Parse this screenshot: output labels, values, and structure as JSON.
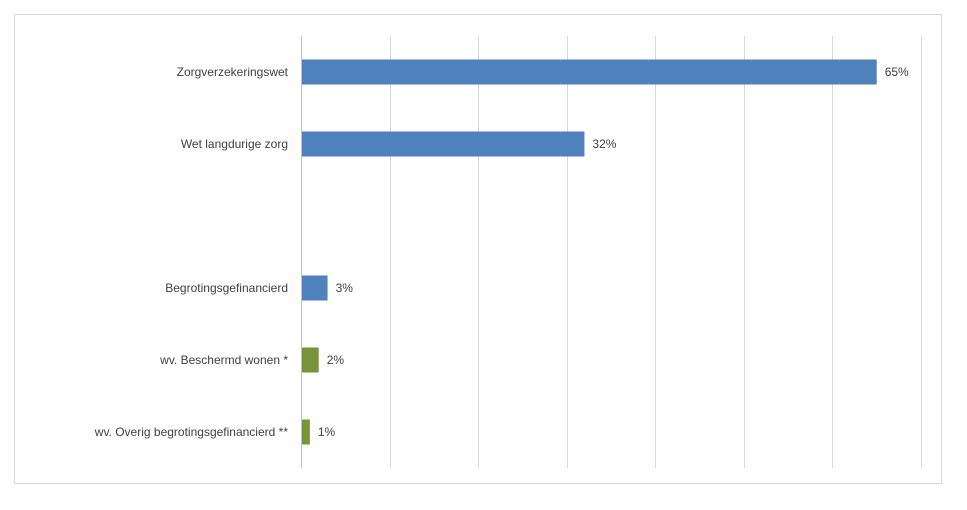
{
  "chart_data": {
    "type": "bar",
    "orientation": "horizontal",
    "categories": [
      "Zorgverzekeringswet",
      "Wet langdurige zorg",
      "",
      "Begrotingsgefinancierd",
      "wv. Beschermd wonen *",
      "wv. Overig begrotingsgefinancierd **"
    ],
    "values": [
      65,
      32,
      null,
      3,
      2,
      1
    ],
    "data_labels": [
      "65%",
      "32%",
      "",
      "3%",
      "2%",
      "1%"
    ],
    "colors": [
      "#4f81bd",
      "#4f81bd",
      null,
      "#4f81bd",
      "#77933c",
      "#77933c"
    ],
    "xlim": [
      0,
      70
    ],
    "grid": true,
    "title": "",
    "xlabel": "",
    "ylabel": ""
  }
}
